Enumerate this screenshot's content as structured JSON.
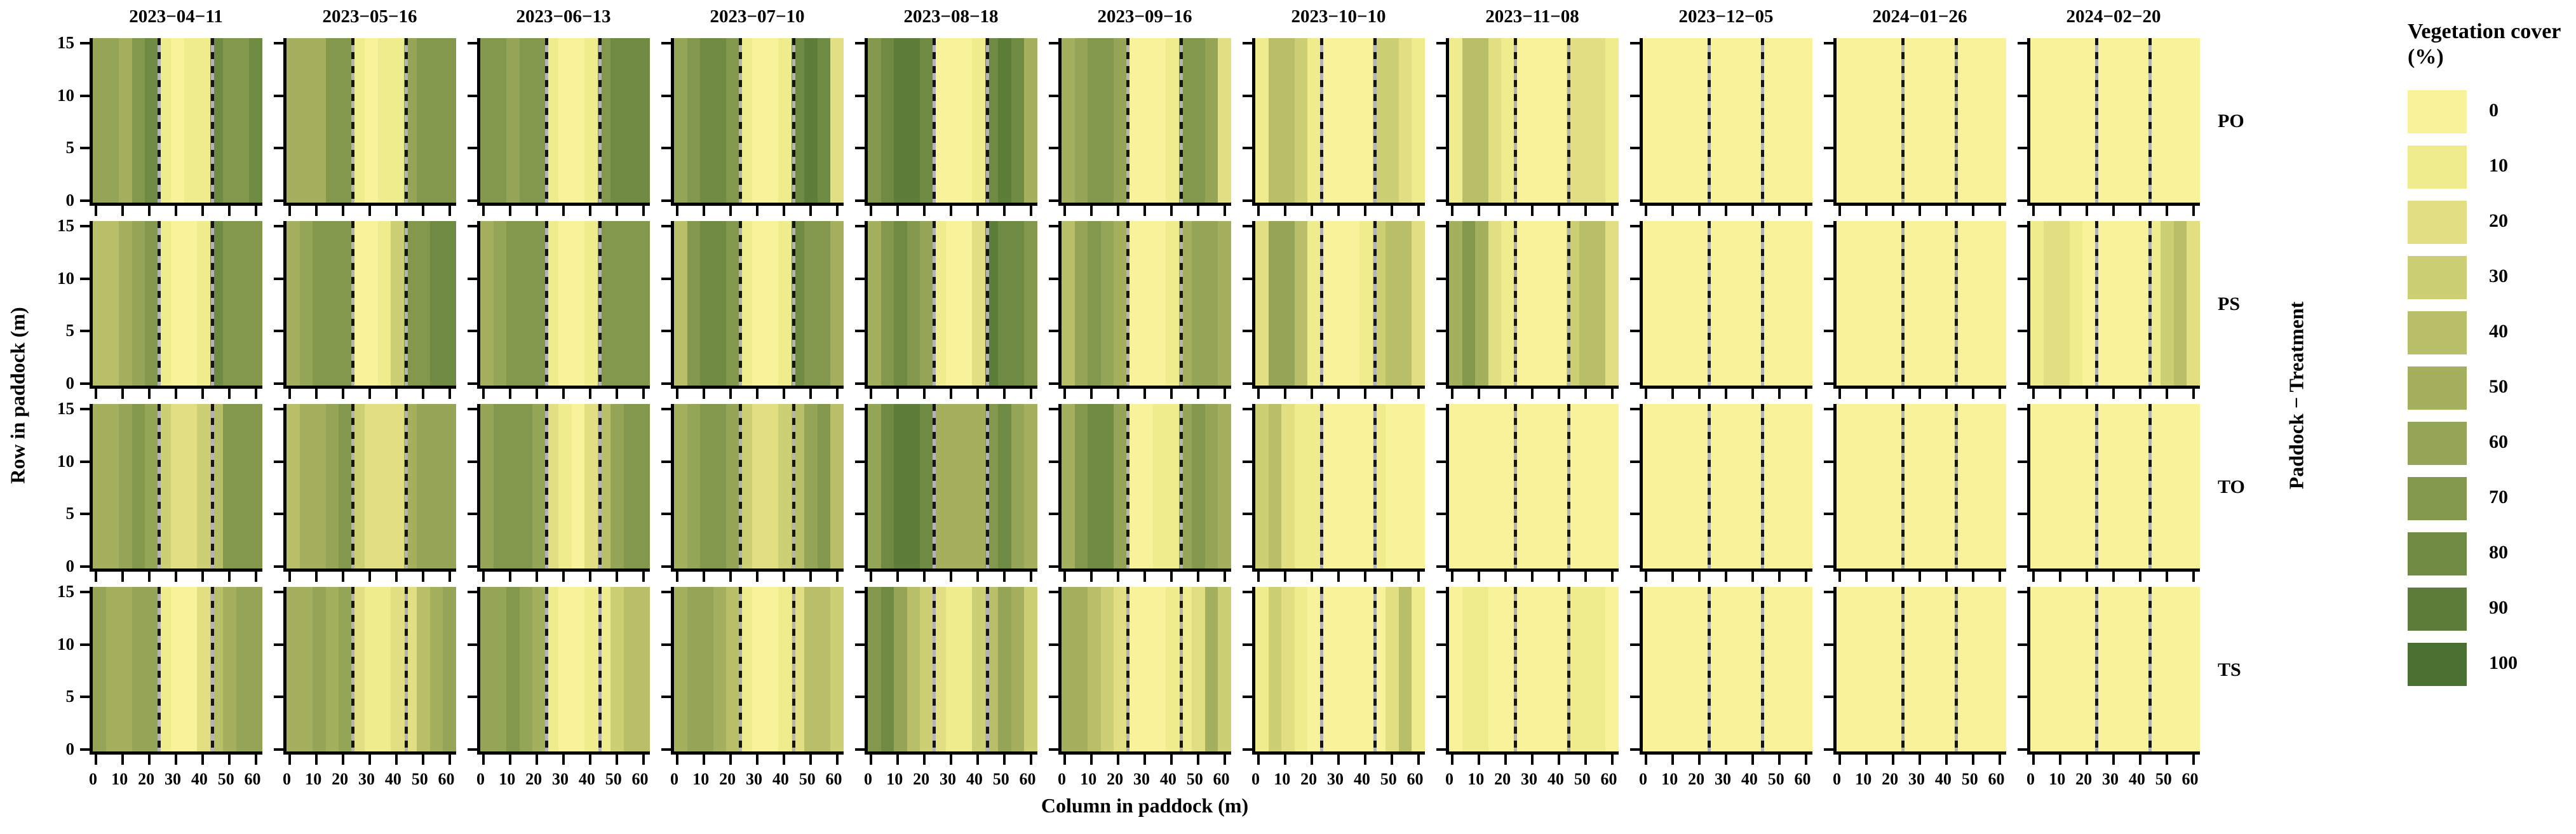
{
  "figure": {
    "xlabel": "Column in paddock (m)",
    "ylabel": "Row in paddock (m)",
    "right_axis_label": "Paddock − Treatment",
    "legend_title": "Vegetation cover (%)"
  },
  "chart_data": {
    "type": "heatmap",
    "title": "",
    "xlabel": "Column in paddock (m)",
    "ylabel": "Row in paddock (m)",
    "right_axis_label": "Paddock − Treatment",
    "facet_col_titles": [
      "2023−04−11",
      "2023−05−16",
      "2023−06−13",
      "2023−07−10",
      "2023−08−18",
      "2023−09−16",
      "2023−10−10",
      "2023−11−08",
      "2023−12−05",
      "2024−01−26",
      "2024−02−20"
    ],
    "facet_row_labels": [
      "PO",
      "PS",
      "TO",
      "TS"
    ],
    "x_bins": [
      0,
      5,
      10,
      15,
      20,
      25,
      30,
      35,
      40,
      45,
      50,
      55,
      60
    ],
    "x_ticks": [
      0,
      10,
      20,
      30,
      40,
      50,
      60
    ],
    "y_ticks": [
      15,
      10,
      5,
      0
    ],
    "xlim": [
      -2.5,
      62.5
    ],
    "ylim": [
      -0.5,
      15.5
    ],
    "grid": false,
    "dotted_vlines_x": [
      22.5,
      42.5
    ],
    "legend": {
      "title": "Vegetation cover (%)",
      "position": "right",
      "values": [
        0,
        10,
        20,
        30,
        40,
        50,
        60,
        70,
        80,
        90,
        100
      ]
    },
    "color_scale": {
      "0": "#F8F39A",
      "10": "#EFEC8D",
      "20": "#E1DF81",
      "30": "#CDCF74",
      "40": "#B8BF68",
      "50": "#A5B05F",
      "60": "#95A557",
      "70": "#84984D",
      "80": "#6F8B43",
      "90": "#5C7E39",
      "100": "#497030"
    },
    "values": {
      "PO": [
        [
          60,
          60,
          50,
          70,
          80,
          10,
          0,
          10,
          10,
          80,
          70,
          70,
          80
        ],
        [
          50,
          50,
          50,
          70,
          70,
          10,
          0,
          10,
          10,
          60,
          70,
          70,
          70
        ],
        [
          70,
          70,
          60,
          70,
          70,
          10,
          0,
          0,
          10,
          70,
          80,
          80,
          80
        ],
        [
          60,
          70,
          80,
          80,
          70,
          10,
          0,
          0,
          10,
          80,
          90,
          80,
          20
        ],
        [
          70,
          80,
          90,
          90,
          80,
          0,
          0,
          0,
          10,
          80,
          90,
          80,
          50
        ],
        [
          50,
          60,
          70,
          70,
          60,
          0,
          0,
          0,
          10,
          70,
          70,
          60,
          20
        ],
        [
          10,
          40,
          40,
          30,
          10,
          0,
          0,
          0,
          0,
          30,
          30,
          20,
          10
        ],
        [
          10,
          40,
          40,
          20,
          10,
          0,
          0,
          0,
          0,
          20,
          20,
          20,
          10
        ],
        [
          0,
          0,
          0,
          0,
          0,
          0,
          0,
          0,
          0,
          0,
          0,
          0,
          0
        ],
        [
          0,
          0,
          0,
          0,
          0,
          0,
          0,
          0,
          0,
          0,
          0,
          0,
          0
        ],
        [
          0,
          0,
          0,
          0,
          0,
          0,
          0,
          0,
          0,
          0,
          0,
          0,
          0
        ]
      ],
      "PS": [
        [
          40,
          40,
          50,
          60,
          70,
          10,
          0,
          0,
          10,
          80,
          70,
          70,
          70
        ],
        [
          50,
          60,
          70,
          70,
          70,
          0,
          0,
          10,
          30,
          70,
          70,
          80,
          80
        ],
        [
          50,
          60,
          70,
          70,
          70,
          10,
          0,
          0,
          10,
          70,
          70,
          70,
          70
        ],
        [
          40,
          70,
          80,
          80,
          70,
          10,
          0,
          0,
          10,
          80,
          70,
          70,
          50
        ],
        [
          50,
          70,
          80,
          70,
          60,
          10,
          0,
          0,
          20,
          90,
          80,
          80,
          70
        ],
        [
          40,
          60,
          70,
          60,
          50,
          0,
          0,
          0,
          10,
          50,
          60,
          60,
          50
        ],
        [
          20,
          60,
          60,
          40,
          10,
          0,
          0,
          0,
          10,
          30,
          40,
          40,
          20
        ],
        [
          50,
          70,
          50,
          20,
          10,
          0,
          0,
          0,
          0,
          30,
          40,
          40,
          20
        ],
        [
          0,
          0,
          0,
          0,
          0,
          0,
          0,
          0,
          0,
          0,
          0,
          0,
          0
        ],
        [
          0,
          0,
          0,
          0,
          0,
          0,
          0,
          0,
          0,
          0,
          0,
          0,
          0
        ],
        [
          10,
          20,
          20,
          10,
          0,
          0,
          0,
          0,
          0,
          10,
          30,
          40,
          20
        ]
      ],
      "TO": [
        [
          50,
          50,
          60,
          70,
          60,
          30,
          20,
          20,
          30,
          40,
          70,
          70,
          70
        ],
        [
          40,
          50,
          50,
          60,
          70,
          30,
          20,
          20,
          20,
          50,
          60,
          60,
          60
        ],
        [
          60,
          70,
          70,
          70,
          60,
          20,
          10,
          0,
          20,
          40,
          60,
          70,
          70
        ],
        [
          50,
          60,
          70,
          70,
          60,
          30,
          20,
          20,
          30,
          40,
          60,
          70,
          40
        ],
        [
          60,
          80,
          90,
          90,
          80,
          50,
          50,
          50,
          50,
          70,
          80,
          60,
          50
        ],
        [
          50,
          70,
          80,
          80,
          60,
          0,
          0,
          10,
          10,
          60,
          70,
          60,
          50
        ],
        [
          30,
          40,
          20,
          10,
          10,
          0,
          0,
          0,
          0,
          10,
          0,
          0,
          0
        ],
        [
          0,
          0,
          0,
          0,
          0,
          0,
          0,
          0,
          0,
          0,
          0,
          0,
          0
        ],
        [
          0,
          0,
          0,
          0,
          0,
          0,
          0,
          0,
          0,
          0,
          0,
          0,
          0
        ],
        [
          0,
          0,
          0,
          0,
          0,
          0,
          0,
          0,
          0,
          0,
          0,
          0,
          0
        ],
        [
          0,
          0,
          0,
          0,
          0,
          0,
          0,
          0,
          0,
          0,
          0,
          0,
          0
        ]
      ],
      "TS": [
        [
          60,
          50,
          50,
          60,
          60,
          10,
          0,
          0,
          20,
          40,
          50,
          60,
          60
        ],
        [
          50,
          50,
          60,
          50,
          60,
          20,
          10,
          10,
          20,
          20,
          40,
          50,
          60
        ],
        [
          60,
          60,
          70,
          60,
          50,
          10,
          0,
          0,
          10,
          10,
          30,
          40,
          40
        ],
        [
          50,
          60,
          60,
          50,
          40,
          10,
          0,
          0,
          10,
          20,
          40,
          40,
          30
        ],
        [
          70,
          80,
          60,
          40,
          30,
          20,
          10,
          10,
          30,
          40,
          60,
          50,
          30
        ],
        [
          50,
          50,
          40,
          30,
          20,
          0,
          0,
          0,
          10,
          10,
          20,
          50,
          30
        ],
        [
          10,
          30,
          20,
          10,
          0,
          0,
          0,
          0,
          0,
          0,
          20,
          40,
          10
        ],
        [
          0,
          10,
          10,
          0,
          0,
          0,
          0,
          0,
          0,
          10,
          10,
          10,
          0
        ],
        [
          0,
          0,
          0,
          0,
          0,
          0,
          0,
          0,
          0,
          0,
          0,
          0,
          0
        ],
        [
          0,
          0,
          0,
          0,
          0,
          0,
          0,
          0,
          0,
          0,
          0,
          0,
          0
        ],
        [
          0,
          0,
          0,
          0,
          0,
          0,
          0,
          0,
          0,
          0,
          0,
          0,
          0
        ]
      ]
    }
  }
}
